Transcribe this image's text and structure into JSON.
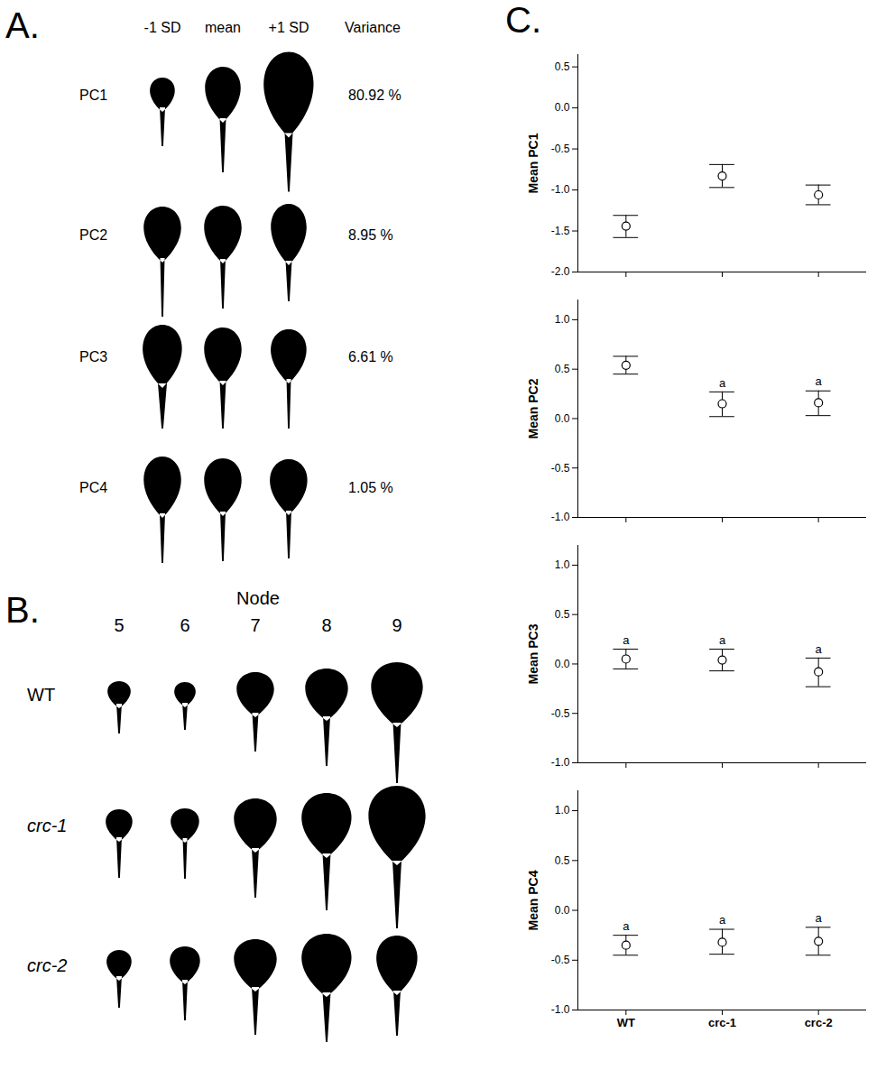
{
  "panel_a": {
    "letter": "A.",
    "columns": [
      "-1 SD",
      "mean",
      "+1 SD"
    ],
    "variance_header": "Variance",
    "rows": [
      {
        "label": "PC1",
        "variance": "80.92 %"
      },
      {
        "label": "PC2",
        "variance": "8.95 %"
      },
      {
        "label": "PC3",
        "variance": "6.61 %"
      },
      {
        "label": "PC4",
        "variance": "1.05 %"
      }
    ]
  },
  "panel_b": {
    "letter": "B.",
    "header": "Node",
    "nodes": [
      5,
      6,
      7,
      8,
      9
    ],
    "rows": [
      {
        "label": "WT",
        "italic": false
      },
      {
        "label": "crc-1",
        "italic": true
      },
      {
        "label": "crc-2",
        "italic": true
      }
    ]
  },
  "panel_c": {
    "letter": "C."
  },
  "chart_data": [
    {
      "type": "scatter",
      "y_label": "Mean PC1",
      "categories": [
        "WT",
        "crc-1",
        "crc-2"
      ],
      "values": [
        -1.44,
        -0.83,
        -1.06
      ],
      "error_low": [
        -1.58,
        -0.97,
        -1.18
      ],
      "error_high": [
        -1.31,
        -0.69,
        -0.94
      ],
      "ylim": [
        -2.0,
        0.65
      ],
      "yticks": [
        {
          "value": -2,
          "label": "-2.0"
        },
        -1.5,
        {
          "value": -1,
          "label": "-1.0"
        },
        -0.5,
        {
          "value": 0,
          "label": "0.0"
        },
        0.5
      ],
      "marker": "circle",
      "color": "#000000",
      "tick_labels": "y"
    },
    {
      "type": "scatter",
      "y_label": "Mean PC2",
      "categories": [
        "WT",
        "crc-1",
        "crc-2"
      ],
      "values": [
        0.54,
        0.15,
        0.16
      ],
      "error_low": [
        0.45,
        0.02,
        0.03
      ],
      "error_high": [
        0.63,
        0.27,
        0.28
      ],
      "annotations": [
        null,
        "a",
        "a"
      ],
      "ylim": [
        -1.0,
        1.2
      ],
      "yticks": [
        {
          "value": -1,
          "label": "-1.0"
        },
        -0.5,
        {
          "value": 0,
          "label": "0.0"
        },
        0.5,
        {
          "value": 1,
          "label": "1.0"
        }
      ],
      "marker": "circle",
      "color": "#000000",
      "tick_labels": "y"
    },
    {
      "type": "scatter",
      "y_label": "Mean PC3",
      "categories": [
        "WT",
        "crc-1",
        "crc-2"
      ],
      "values": [
        0.05,
        0.04,
        -0.08
      ],
      "error_low": [
        -0.05,
        -0.07,
        -0.23
      ],
      "error_high": [
        0.15,
        0.15,
        0.06
      ],
      "annotations": [
        "a",
        "a",
        "a"
      ],
      "ylim": [
        -1.0,
        1.2
      ],
      "yticks": [
        {
          "value": -1,
          "label": "-1.0"
        },
        -0.5,
        {
          "value": 0,
          "label": "0.0"
        },
        0.5,
        {
          "value": 1,
          "label": "1.0"
        }
      ],
      "marker": "circle",
      "color": "#000000",
      "tick_labels": "y"
    },
    {
      "type": "scatter",
      "y_label": "Mean PC4",
      "categories": [
        "WT",
        "crc-1",
        "crc-2"
      ],
      "values": [
        -0.35,
        -0.32,
        -0.31
      ],
      "error_low": [
        -0.45,
        -0.44,
        -0.45
      ],
      "error_high": [
        -0.25,
        -0.19,
        -0.17
      ],
      "annotations": [
        "a",
        "a",
        "a"
      ],
      "ylim": [
        -1.0,
        1.2
      ],
      "yticks": [
        {
          "value": -1,
          "label": "-1.0"
        },
        -0.5,
        {
          "value": 0,
          "label": "0.0"
        },
        0.5,
        {
          "value": 1,
          "label": "1.0"
        }
      ],
      "marker": "circle",
      "color": "#000000"
    }
  ]
}
